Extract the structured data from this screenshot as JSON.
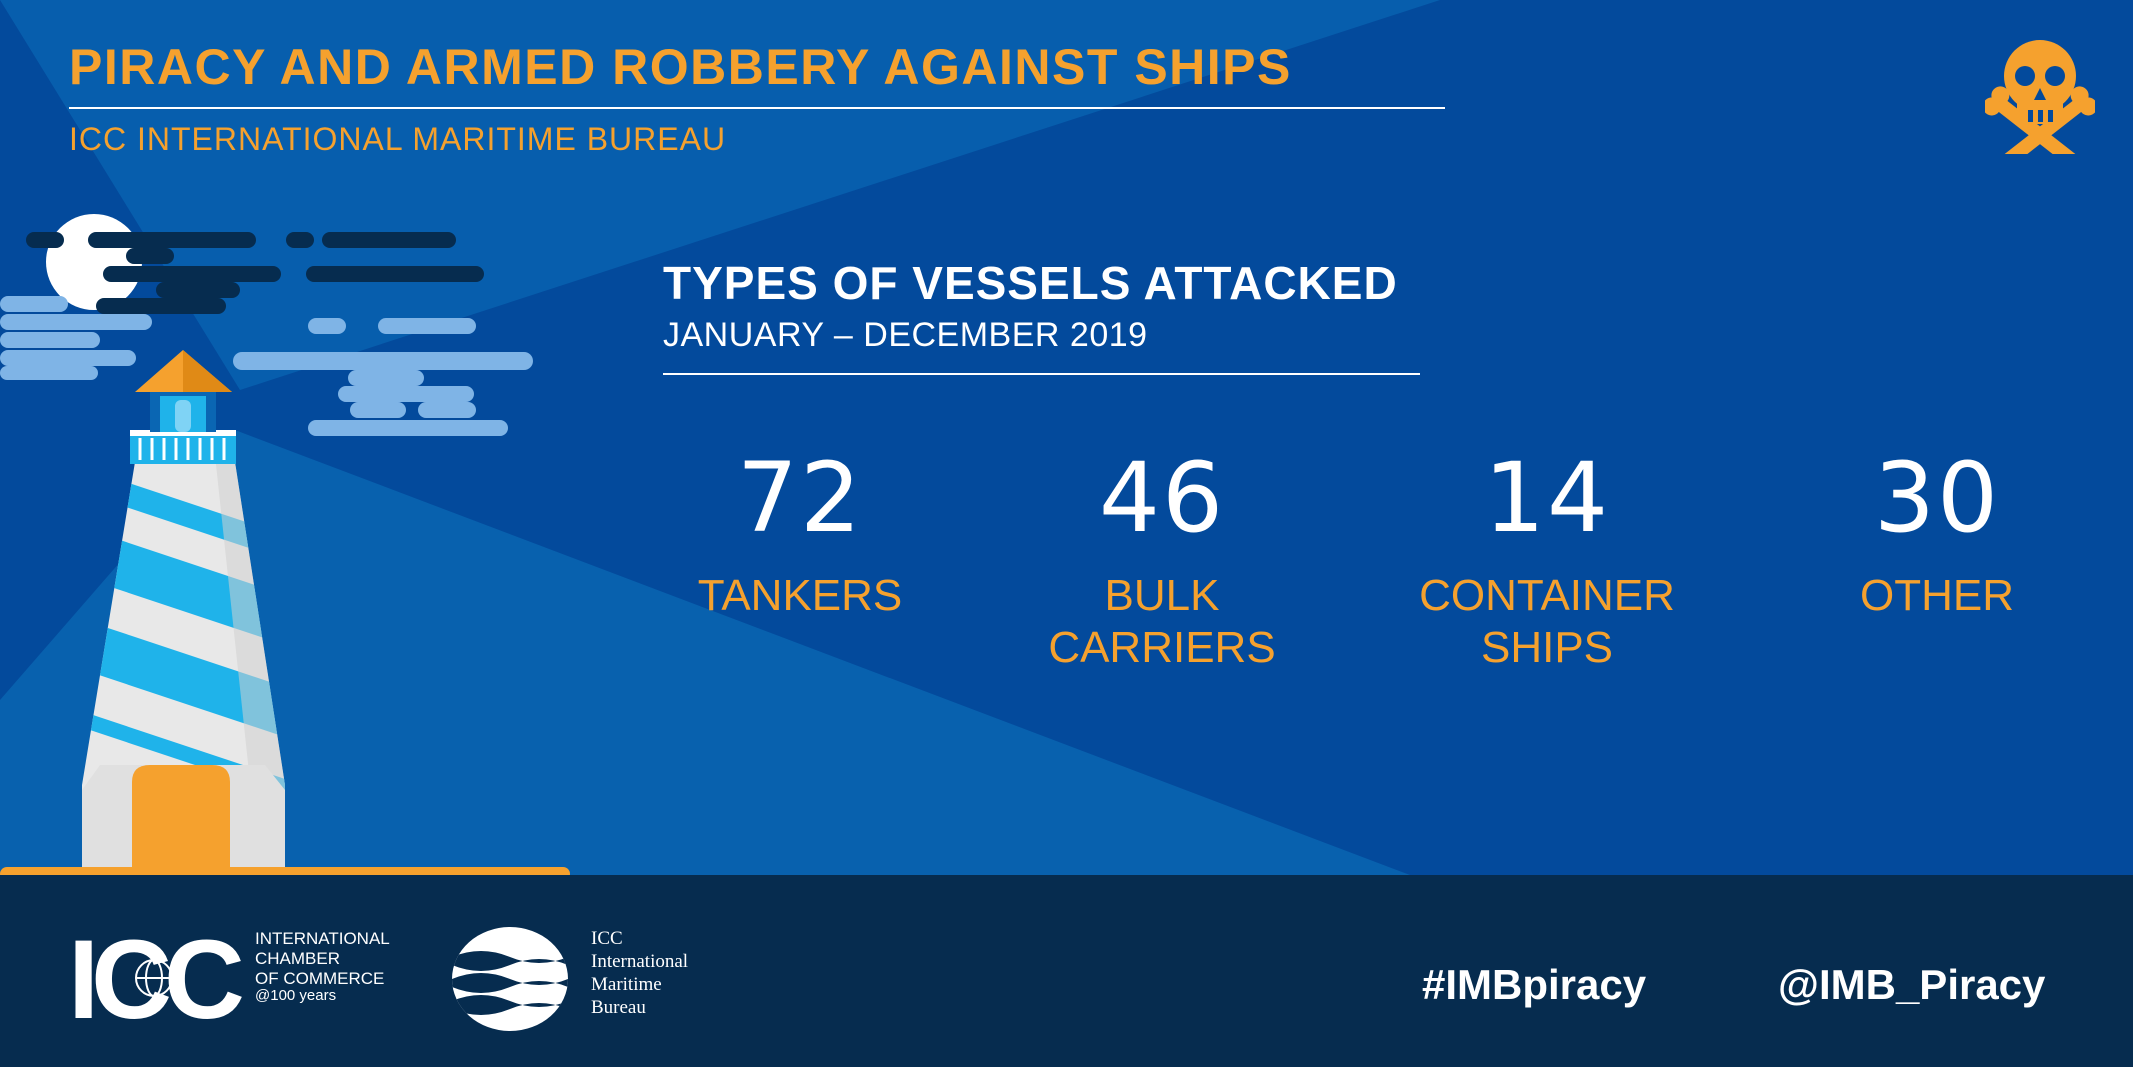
{
  "header": {
    "title": "PIRACY AND ARMED ROBBERY AGAINST SHIPS",
    "subtitle": "ICC INTERNATIONAL MARITIME BUREAU",
    "badge_icon": "skull-crossbones-icon"
  },
  "section": {
    "title": "TYPES OF VESSELS ATTACKED",
    "period": "JANUARY – DECEMBER 2019"
  },
  "stats": [
    {
      "value": "72",
      "label": "TANKERS"
    },
    {
      "value": "46",
      "label": "BULK\nCARRIERS"
    },
    {
      "value": "14",
      "label": "CONTAINER\nSHIPS"
    },
    {
      "value": "30",
      "label": "OTHER"
    }
  ],
  "footer": {
    "icc_logo_text": "ICC",
    "icc_name": "INTERNATIONAL\nCHAMBER\nOF COMMERCE",
    "icc_anniversary": "@100 years",
    "imb_name": "ICC\nInternational\nMaritime\nBureau",
    "hashtag": "#IMBpiracy",
    "handle": "@IMB_Piracy"
  },
  "colors": {
    "background": "#034a9c",
    "accent_orange": "#f5a12e",
    "footer": "#062c4f",
    "text_white": "#ffffff"
  }
}
